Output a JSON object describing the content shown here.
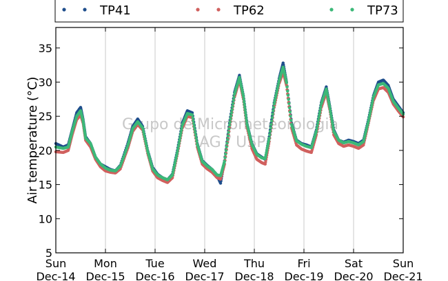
{
  "chart_data": {
    "type": "scatter",
    "ylabel": "Air temperature (°C)",
    "ylim": [
      5,
      38
    ],
    "yticks": [
      5,
      10,
      15,
      20,
      25,
      30,
      35
    ],
    "xlim": [
      0,
      7
    ],
    "xticks": [
      {
        "x": 0,
        "line1": "Sun",
        "line2": "Dec-14"
      },
      {
        "x": 1,
        "line1": "Mon",
        "line2": "Dec-15"
      },
      {
        "x": 2,
        "line1": "Tue",
        "line2": "Dec-16"
      },
      {
        "x": 3,
        "line1": "Wed",
        "line2": "Dec-17"
      },
      {
        "x": 4,
        "line1": "Thu",
        "line2": "Dec-18"
      },
      {
        "x": 5,
        "line1": "Fri",
        "line2": "Dec-19"
      },
      {
        "x": 6,
        "line1": "Sat",
        "line2": "Dec-20"
      },
      {
        "x": 7,
        "line1": "Sun",
        "line2": "Dec-21"
      }
    ],
    "grid": "vertical",
    "legend_position": "top",
    "watermark": [
      "Grupo de Micrometeorologia",
      "IAG / USP"
    ],
    "series": [
      {
        "name": "TP41",
        "color": "#1f4e8c",
        "points": [
          [
            0,
            21
          ],
          [
            0.15,
            20.5
          ],
          [
            0.25,
            20.8
          ],
          [
            0.33,
            23
          ],
          [
            0.42,
            25.5
          ],
          [
            0.5,
            26.3
          ],
          [
            0.55,
            24.5
          ],
          [
            0.6,
            22
          ],
          [
            0.7,
            21
          ],
          [
            0.8,
            19
          ],
          [
            0.9,
            18
          ],
          [
            1,
            17.6
          ],
          [
            1.1,
            17.2
          ],
          [
            1.2,
            17
          ],
          [
            1.3,
            17.8
          ],
          [
            1.45,
            21
          ],
          [
            1.55,
            23.5
          ],
          [
            1.65,
            24.6
          ],
          [
            1.75,
            23.5
          ],
          [
            1.85,
            20
          ],
          [
            1.95,
            17.5
          ],
          [
            2.05,
            16.5
          ],
          [
            2.15,
            16
          ],
          [
            2.25,
            15.7
          ],
          [
            2.35,
            16.5
          ],
          [
            2.45,
            20
          ],
          [
            2.55,
            24
          ],
          [
            2.65,
            25.8
          ],
          [
            2.75,
            25.5
          ],
          [
            2.85,
            21
          ],
          [
            2.95,
            18.5
          ],
          [
            3.05,
            17.8
          ],
          [
            3.15,
            17.2
          ],
          [
            3.25,
            16.3
          ],
          [
            3.32,
            15.2
          ],
          [
            3.4,
            18.5
          ],
          [
            3.5,
            24
          ],
          [
            3.6,
            28.5
          ],
          [
            3.7,
            31
          ],
          [
            3.78,
            28
          ],
          [
            3.85,
            24
          ],
          [
            3.95,
            21
          ],
          [
            4.05,
            19.5
          ],
          [
            4.15,
            19
          ],
          [
            4.22,
            18.7
          ],
          [
            4.3,
            22
          ],
          [
            4.4,
            27
          ],
          [
            4.5,
            30.5
          ],
          [
            4.58,
            32.8
          ],
          [
            4.65,
            30
          ],
          [
            4.75,
            24
          ],
          [
            4.85,
            21.5
          ],
          [
            4.95,
            21
          ],
          [
            5.05,
            20.8
          ],
          [
            5.15,
            20.5
          ],
          [
            5.25,
            23
          ],
          [
            5.35,
            27
          ],
          [
            5.45,
            29.3
          ],
          [
            5.52,
            26.5
          ],
          [
            5.6,
            23
          ],
          [
            5.7,
            21.5
          ],
          [
            5.8,
            21.2
          ],
          [
            5.9,
            21.5
          ],
          [
            6,
            21.3
          ],
          [
            6.1,
            21
          ],
          [
            6.2,
            21.5
          ],
          [
            6.3,
            24.5
          ],
          [
            6.4,
            28
          ],
          [
            6.5,
            30
          ],
          [
            6.6,
            30.3
          ],
          [
            6.7,
            29.5
          ],
          [
            6.8,
            27.5
          ],
          [
            6.9,
            26.5
          ],
          [
            7,
            25.5
          ]
        ]
      },
      {
        "name": "TP62",
        "color": "#d0605e",
        "points": [
          [
            0,
            19.8
          ],
          [
            0.15,
            19.7
          ],
          [
            0.25,
            20
          ],
          [
            0.33,
            22.3
          ],
          [
            0.42,
            24.5
          ],
          [
            0.5,
            25.2
          ],
          [
            0.55,
            24
          ],
          [
            0.6,
            21.5
          ],
          [
            0.7,
            20.5
          ],
          [
            0.8,
            18.7
          ],
          [
            0.9,
            17.6
          ],
          [
            1,
            17
          ],
          [
            1.1,
            16.8
          ],
          [
            1.2,
            16.7
          ],
          [
            1.3,
            17.3
          ],
          [
            1.45,
            20.3
          ],
          [
            1.55,
            22.8
          ],
          [
            1.65,
            23.8
          ],
          [
            1.75,
            23
          ],
          [
            1.85,
            19.6
          ],
          [
            1.95,
            17
          ],
          [
            2.05,
            16
          ],
          [
            2.15,
            15.6
          ],
          [
            2.25,
            15.3
          ],
          [
            2.35,
            16
          ],
          [
            2.45,
            19.5
          ],
          [
            2.55,
            23.3
          ],
          [
            2.65,
            25
          ],
          [
            2.75,
            24.8
          ],
          [
            2.85,
            20.5
          ],
          [
            2.95,
            18
          ],
          [
            3.05,
            17.3
          ],
          [
            3.15,
            16.8
          ],
          [
            3.25,
            16
          ],
          [
            3.32,
            15.8
          ],
          [
            3.4,
            18
          ],
          [
            3.5,
            23.3
          ],
          [
            3.6,
            27.8
          ],
          [
            3.7,
            30.3
          ],
          [
            3.78,
            27.5
          ],
          [
            3.85,
            23.5
          ],
          [
            3.95,
            20.3
          ],
          [
            4.05,
            18.7
          ],
          [
            4.15,
            18.2
          ],
          [
            4.22,
            18
          ],
          [
            4.3,
            21.3
          ],
          [
            4.4,
            26.3
          ],
          [
            4.5,
            29.8
          ],
          [
            4.58,
            31.5
          ],
          [
            4.65,
            29.5
          ],
          [
            4.75,
            23.3
          ],
          [
            4.85,
            20.8
          ],
          [
            4.95,
            20.2
          ],
          [
            5.05,
            19.9
          ],
          [
            5.15,
            19.7
          ],
          [
            5.25,
            22.3
          ],
          [
            5.35,
            26.3
          ],
          [
            5.45,
            28.5
          ],
          [
            5.52,
            26
          ],
          [
            5.6,
            22.3
          ],
          [
            5.7,
            21
          ],
          [
            5.8,
            20.6
          ],
          [
            5.9,
            20.8
          ],
          [
            6,
            20.6
          ],
          [
            6.1,
            20.3
          ],
          [
            6.2,
            20.8
          ],
          [
            6.3,
            24
          ],
          [
            6.4,
            27.3
          ],
          [
            6.5,
            29
          ],
          [
            6.6,
            29.2
          ],
          [
            6.7,
            28.5
          ],
          [
            6.8,
            26.8
          ],
          [
            6.9,
            25.8
          ],
          [
            7,
            24.9
          ]
        ]
      },
      {
        "name": "TP73",
        "color": "#3cb878",
        "points": [
          [
            0,
            20.5
          ],
          [
            0.15,
            20.3
          ],
          [
            0.25,
            20.5
          ],
          [
            0.33,
            22.8
          ],
          [
            0.42,
            25
          ],
          [
            0.5,
            25.8
          ],
          [
            0.55,
            24.3
          ],
          [
            0.6,
            21.8
          ],
          [
            0.7,
            21
          ],
          [
            0.8,
            19
          ],
          [
            0.9,
            18
          ],
          [
            1,
            17.4
          ],
          [
            1.1,
            17.1
          ],
          [
            1.2,
            17
          ],
          [
            1.3,
            17.7
          ],
          [
            1.45,
            20.7
          ],
          [
            1.55,
            23.2
          ],
          [
            1.65,
            24.2
          ],
          [
            1.75,
            23.3
          ],
          [
            1.85,
            19.9
          ],
          [
            1.95,
            17.3
          ],
          [
            2.05,
            16.4
          ],
          [
            2.15,
            16
          ],
          [
            2.25,
            15.7
          ],
          [
            2.35,
            16.4
          ],
          [
            2.45,
            19.8
          ],
          [
            2.55,
            23.7
          ],
          [
            2.65,
            25.4
          ],
          [
            2.75,
            25.2
          ],
          [
            2.85,
            20.9
          ],
          [
            2.95,
            18.4
          ],
          [
            3.05,
            17.7
          ],
          [
            3.15,
            17.2
          ],
          [
            3.25,
            16.4
          ],
          [
            3.32,
            16.3
          ],
          [
            3.4,
            18.4
          ],
          [
            3.5,
            23.7
          ],
          [
            3.6,
            28.2
          ],
          [
            3.7,
            30.7
          ],
          [
            3.78,
            27.9
          ],
          [
            3.85,
            23.9
          ],
          [
            3.95,
            20.9
          ],
          [
            4.05,
            19.4
          ],
          [
            4.15,
            18.9
          ],
          [
            4.22,
            18.8
          ],
          [
            4.3,
            21.8
          ],
          [
            4.4,
            26.8
          ],
          [
            4.5,
            30.2
          ],
          [
            4.58,
            32.2
          ],
          [
            4.65,
            29.9
          ],
          [
            4.75,
            23.8
          ],
          [
            4.85,
            21.4
          ],
          [
            4.95,
            20.9
          ],
          [
            5.05,
            20.6
          ],
          [
            5.15,
            20.4
          ],
          [
            5.25,
            22.8
          ],
          [
            5.35,
            26.8
          ],
          [
            5.45,
            29
          ],
          [
            5.52,
            26.3
          ],
          [
            5.6,
            22.8
          ],
          [
            5.7,
            21.5
          ],
          [
            5.8,
            21.1
          ],
          [
            5.9,
            21.3
          ],
          [
            6,
            21.1
          ],
          [
            6.1,
            20.8
          ],
          [
            6.2,
            21.3
          ],
          [
            6.3,
            24.3
          ],
          [
            6.4,
            27.8
          ],
          [
            6.5,
            29.6
          ],
          [
            6.6,
            29.8
          ],
          [
            6.7,
            29.1
          ],
          [
            6.8,
            27.2
          ],
          [
            6.9,
            26.2
          ],
          [
            7,
            25.3
          ]
        ]
      }
    ]
  }
}
